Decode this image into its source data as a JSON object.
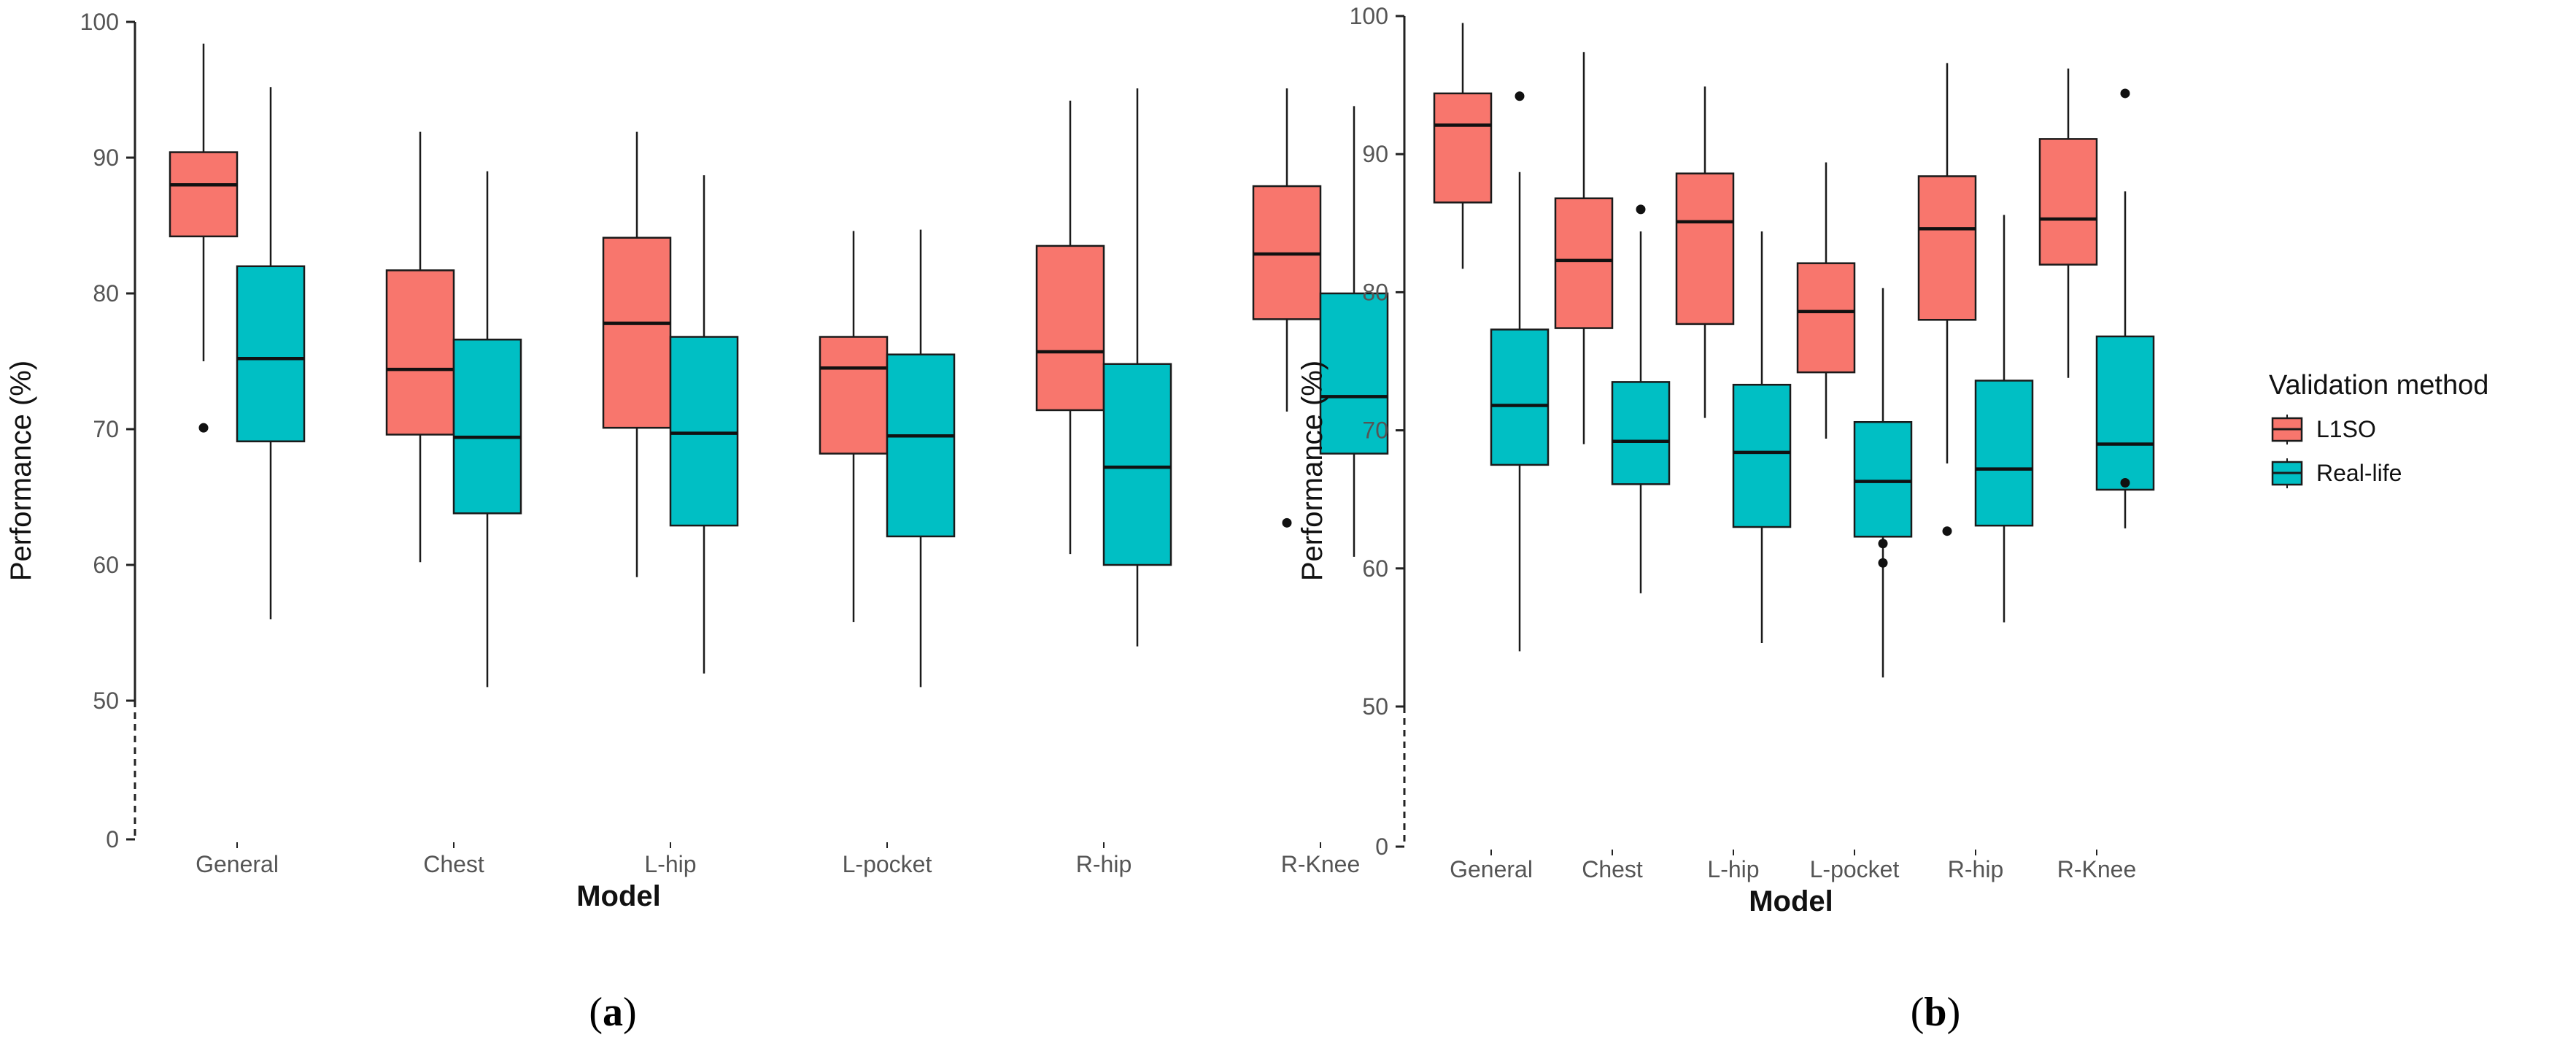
{
  "colors": {
    "l1so": "#F8766D",
    "real_life": "#00BFC4",
    "outline": "#1a1a1a"
  },
  "legend": {
    "title": "Validation method",
    "items": [
      {
        "label": "L1SO",
        "color": "#F8766D"
      },
      {
        "label": "Real-life",
        "color": "#00BFC4"
      }
    ]
  },
  "panels": [
    {
      "caption_open": "(",
      "caption_letter": "a",
      "caption_close": ")"
    },
    {
      "caption_open": "(",
      "caption_letter": "b",
      "caption_close": ")"
    }
  ],
  "chart_data": [
    {
      "type": "boxplot",
      "xlabel": "Model",
      "ylabel": "Performance (%)",
      "ylim": [
        0,
        100
      ],
      "yticks": [
        0,
        50,
        60,
        70,
        80,
        90,
        100
      ],
      "axis_break_below": 50,
      "grid": false,
      "categories": [
        "General",
        "Chest",
        "L-hip",
        "L-pocket",
        "R-hip",
        "R-Knee"
      ],
      "series": [
        {
          "name": "L1SO",
          "boxes": [
            {
              "min": 75,
              "q1": 84.2,
              "median": 88.0,
              "q3": 90.4,
              "max": 98.4,
              "outliers": [
                70.1
              ]
            },
            {
              "min": 60.2,
              "q1": 69.6,
              "median": 74.4,
              "q3": 81.7,
              "max": 91.9,
              "outliers": []
            },
            {
              "min": 59.1,
              "q1": 70.1,
              "median": 77.8,
              "q3": 84.1,
              "max": 91.9,
              "outliers": []
            },
            {
              "min": 55.8,
              "q1": 68.2,
              "median": 74.5,
              "q3": 76.8,
              "max": 84.6,
              "outliers": []
            },
            {
              "min": 60.8,
              "q1": 71.4,
              "median": 75.7,
              "q3": 83.5,
              "max": 94.2,
              "outliers": []
            },
            {
              "min": 71.3,
              "q1": 78.1,
              "median": 82.9,
              "q3": 87.9,
              "max": 95.1,
              "outliers": [
                63.1
              ]
            }
          ]
        },
        {
          "name": "Real-life",
          "boxes": [
            {
              "min": 56.0,
              "q1": 69.1,
              "median": 75.2,
              "q3": 82.0,
              "max": 95.2,
              "outliers": []
            },
            {
              "min": 51.0,
              "q1": 63.8,
              "median": 69.4,
              "q3": 76.6,
              "max": 89.0,
              "outliers": []
            },
            {
              "min": 52.0,
              "q1": 62.9,
              "median": 69.7,
              "q3": 76.8,
              "max": 88.7,
              "outliers": []
            },
            {
              "min": 51.0,
              "q1": 62.1,
              "median": 69.5,
              "q3": 75.5,
              "max": 84.7,
              "outliers": []
            },
            {
              "min": 54.0,
              "q1": 60.0,
              "median": 67.2,
              "q3": 74.8,
              "max": 95.1,
              "outliers": []
            },
            {
              "min": 60.6,
              "q1": 68.2,
              "median": 72.4,
              "q3": 80.0,
              "max": 93.8,
              "outliers": []
            }
          ]
        }
      ]
    },
    {
      "type": "boxplot",
      "xlabel": "Model",
      "ylabel": "Performance (%)",
      "ylim": [
        0,
        100
      ],
      "yticks": [
        0,
        50,
        60,
        70,
        80,
        90,
        100
      ],
      "axis_break_below": 50,
      "grid": false,
      "categories": [
        "General",
        "Chest",
        "L-hip",
        "L-pocket",
        "R-hip",
        "R-Knee"
      ],
      "series": [
        {
          "name": "L1SO",
          "boxes": [
            {
              "min": 81.7,
              "q1": 86.5,
              "median": 92.1,
              "q3": 94.4,
              "max": 99.5,
              "outliers": []
            },
            {
              "min": 69.0,
              "q1": 77.4,
              "median": 82.3,
              "q3": 86.8,
              "max": 97.4,
              "outliers": []
            },
            {
              "min": 70.9,
              "q1": 77.7,
              "median": 85.1,
              "q3": 88.6,
              "max": 94.9,
              "outliers": []
            },
            {
              "min": 69.4,
              "q1": 74.2,
              "median": 78.6,
              "q3": 82.1,
              "max": 89.4,
              "outliers": []
            },
            {
              "min": 67.6,
              "q1": 78.0,
              "median": 84.6,
              "q3": 88.4,
              "max": 96.6,
              "outliers": [
                62.7
              ]
            },
            {
              "min": 73.8,
              "q1": 82.0,
              "median": 85.3,
              "q3": 91.1,
              "max": 96.2,
              "outliers": []
            }
          ]
        },
        {
          "name": "Real-life",
          "boxes": [
            {
              "min": 54.0,
              "q1": 67.5,
              "median": 71.8,
              "q3": 77.3,
              "max": 88.7,
              "outliers": [
                94.2
              ]
            },
            {
              "min": 58.2,
              "q1": 66.1,
              "median": 69.2,
              "q3": 73.5,
              "max": 84.4,
              "outliers": [
                86.0
              ]
            },
            {
              "min": 54.6,
              "q1": 63.0,
              "median": 68.4,
              "q3": 73.3,
              "max": 84.4,
              "outliers": []
            },
            {
              "min": 52.1,
              "q1": 62.3,
              "median": 66.3,
              "q3": 70.6,
              "max": 80.3,
              "outliers": [
                61.8,
                60.4
              ]
            },
            {
              "min": 56.1,
              "q1": 63.1,
              "median": 67.2,
              "q3": 73.6,
              "max": 85.6,
              "outliers": []
            },
            {
              "min": 62.9,
              "q1": 65.7,
              "median": 69.0,
              "q3": 76.8,
              "max": 87.3,
              "outliers": [
                66.2,
                94.4
              ]
            }
          ]
        }
      ]
    }
  ]
}
